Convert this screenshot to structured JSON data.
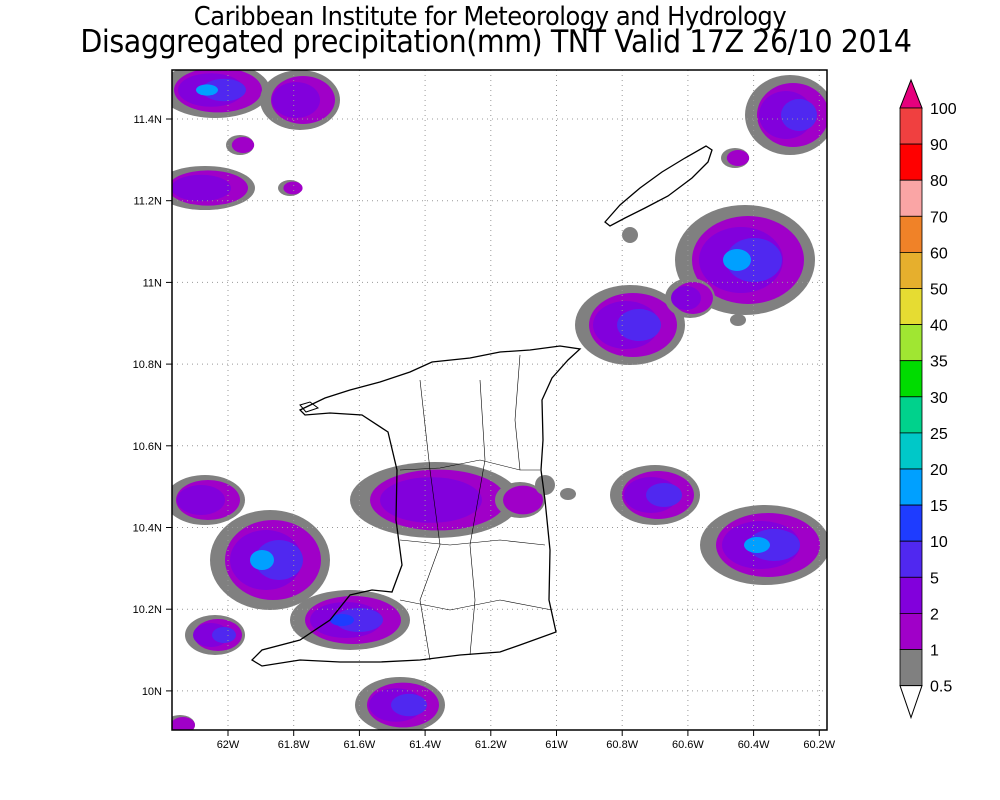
{
  "title": {
    "line1": "Caribbean Institute for Meteorology and Hydrology",
    "line2": "Disaggregated precipitation(mm) TNT Valid 17Z 26/10 2014"
  },
  "map": {
    "x_ticks": [
      "62W",
      "61.8W",
      "61.6W",
      "61.4W",
      "61.2W",
      "61W",
      "60.8W",
      "60.6W",
      "60.4W",
      "60.2W"
    ],
    "y_ticks": [
      "11.4N",
      "11.2N",
      "11N",
      "10.8N",
      "10.6N",
      "10.4N",
      "10.2N",
      "10N"
    ]
  },
  "colorbar": {
    "labels": [
      "100",
      "90",
      "80",
      "70",
      "60",
      "50",
      "40",
      "35",
      "30",
      "25",
      "20",
      "15",
      "10",
      "5",
      "2",
      "1",
      "0.5"
    ],
    "colors": [
      "#f04040",
      "#ff0000",
      "#faa5a5",
      "#f08228",
      "#e6af2d",
      "#e6dc32",
      "#a0e632",
      "#00dc00",
      "#00d28c",
      "#00c8c8",
      "#00a0ff",
      "#1e3cff",
      "#5028f0",
      "#8200dc",
      "#a000c8",
      "#808080"
    ],
    "over_color": "#e6007d",
    "under_color": "#ffffff"
  }
}
